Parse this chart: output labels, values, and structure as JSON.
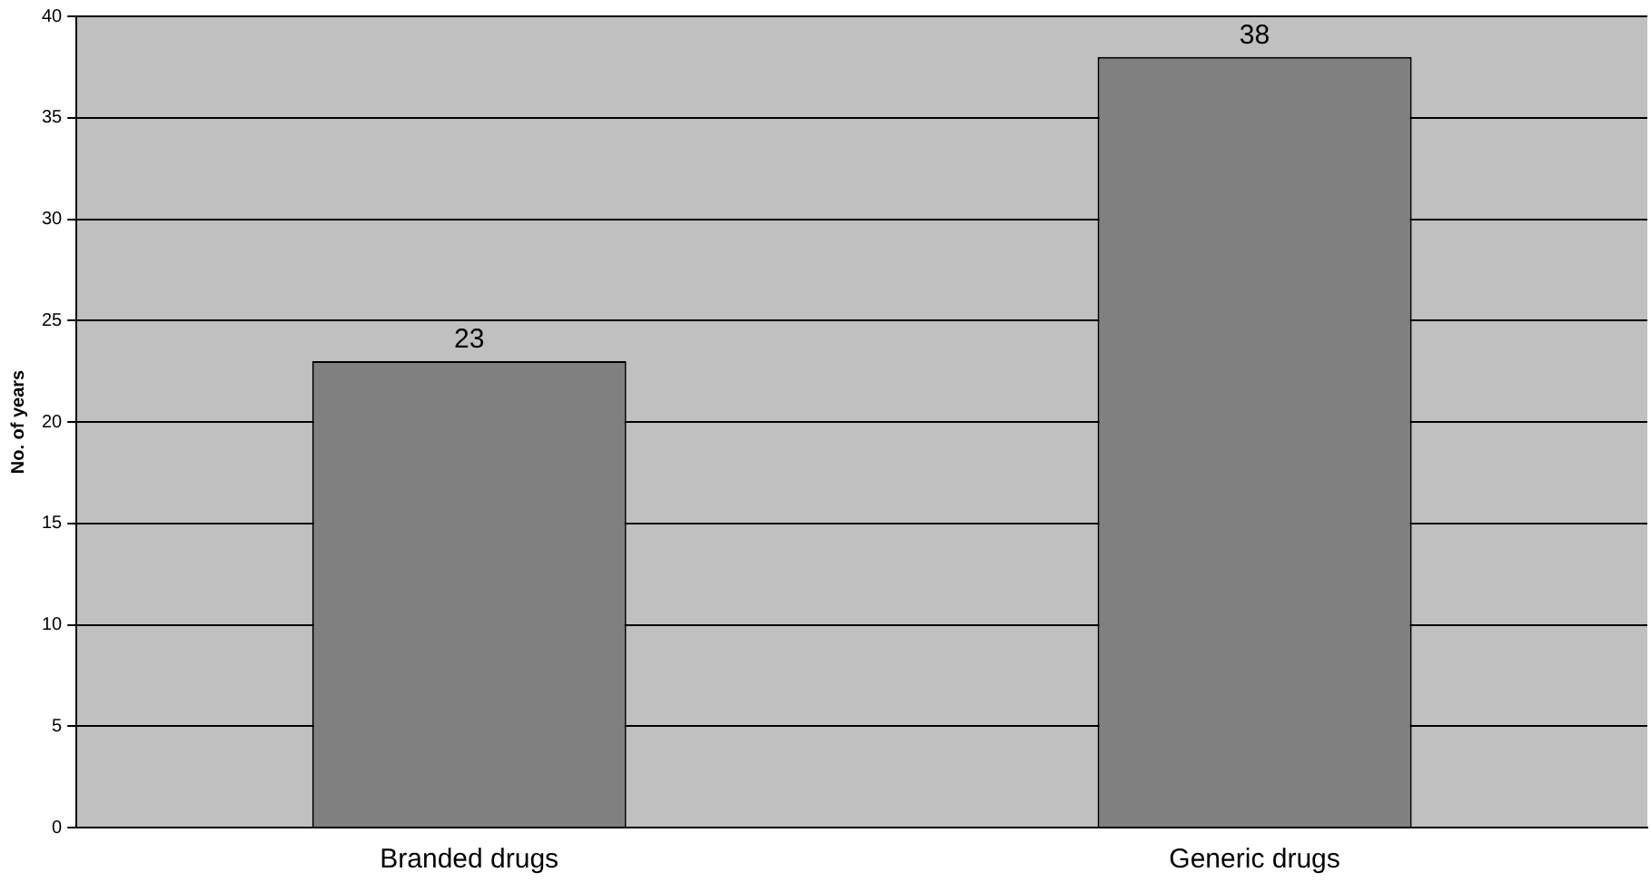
{
  "chart_data": {
    "type": "bar",
    "ylabel": "No. of years",
    "categories": [
      "Branded drugs",
      "Generic drugs"
    ],
    "values": [
      23,
      38
    ],
    "color": "#808080",
    "ylim": [
      0,
      40
    ],
    "yticks": [
      0,
      5,
      10,
      15,
      20,
      25,
      30,
      35,
      40
    ],
    "grid": "y",
    "data_labels": true,
    "legend": false
  }
}
